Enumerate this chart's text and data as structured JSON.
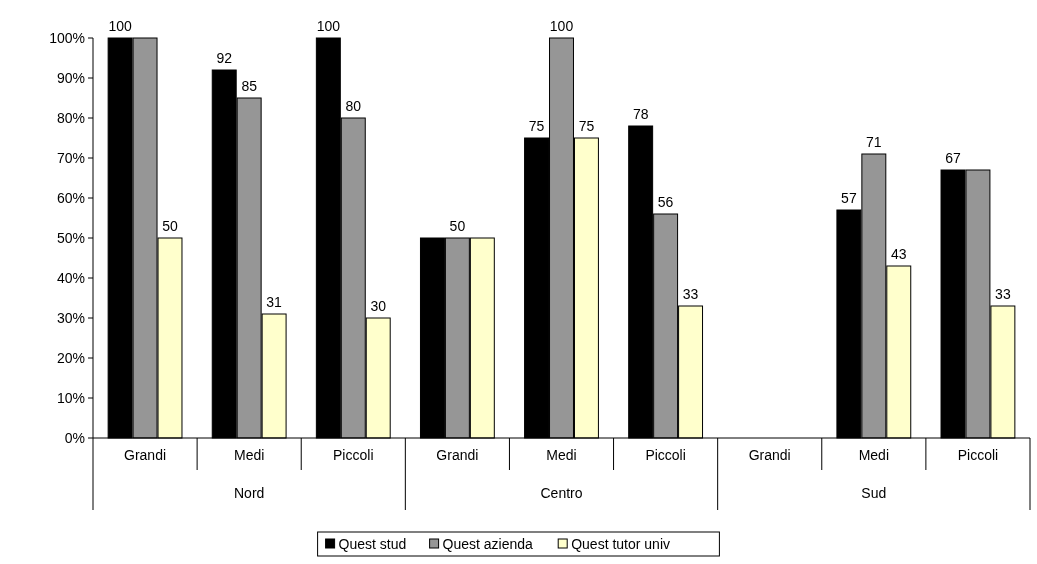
{
  "chart_data": {
    "type": "bar",
    "categories": [
      "Grandi",
      "Medi",
      "Piccoli",
      "Grandi",
      "Medi",
      "Piccoli",
      "Grandi",
      "Medi",
      "Piccoli"
    ],
    "annotations": [
      "Nord",
      "Centro",
      "Sud"
    ],
    "series": [
      {
        "name": "Quest stud",
        "color": "#000000",
        "values": [
          100,
          92,
          100,
          50,
          75,
          78,
          null,
          57,
          67
        ],
        "value_labels": [
          "100",
          "92",
          "100",
          null,
          "75",
          "78",
          null,
          "57",
          "67"
        ]
      },
      {
        "name": "Quest azienda",
        "color": "#969696",
        "values": [
          100,
          85,
          80,
          50,
          100,
          56,
          null,
          71,
          67
        ],
        "value_labels": [
          null,
          "85",
          "80",
          "50",
          "100",
          "56",
          null,
          "71",
          null
        ]
      },
      {
        "name": "Quest tutor univ",
        "color": "#ffffcc",
        "values": [
          50,
          31,
          30,
          50,
          75,
          33,
          null,
          43,
          33
        ],
        "value_labels": [
          "50",
          "31",
          "30",
          null,
          "75",
          "33",
          null,
          "43",
          "33"
        ]
      }
    ],
    "ylim": [
      0,
      100
    ],
    "yticks": [
      {
        "value": 0,
        "label": "0%"
      },
      {
        "value": 10,
        "label": "10%"
      },
      {
        "value": 20,
        "label": "20%"
      },
      {
        "value": 30,
        "label": "30%"
      },
      {
        "value": 40,
        "label": "40%"
      },
      {
        "value": 50,
        "label": "50%"
      },
      {
        "value": 60,
        "label": "60%"
      },
      {
        "value": 70,
        "label": "70%"
      },
      {
        "value": 80,
        "label": "80%"
      },
      {
        "value": 90,
        "label": "90%"
      },
      {
        "value": 100,
        "label": "100%"
      }
    ],
    "grid": false,
    "legend": "bottom"
  }
}
